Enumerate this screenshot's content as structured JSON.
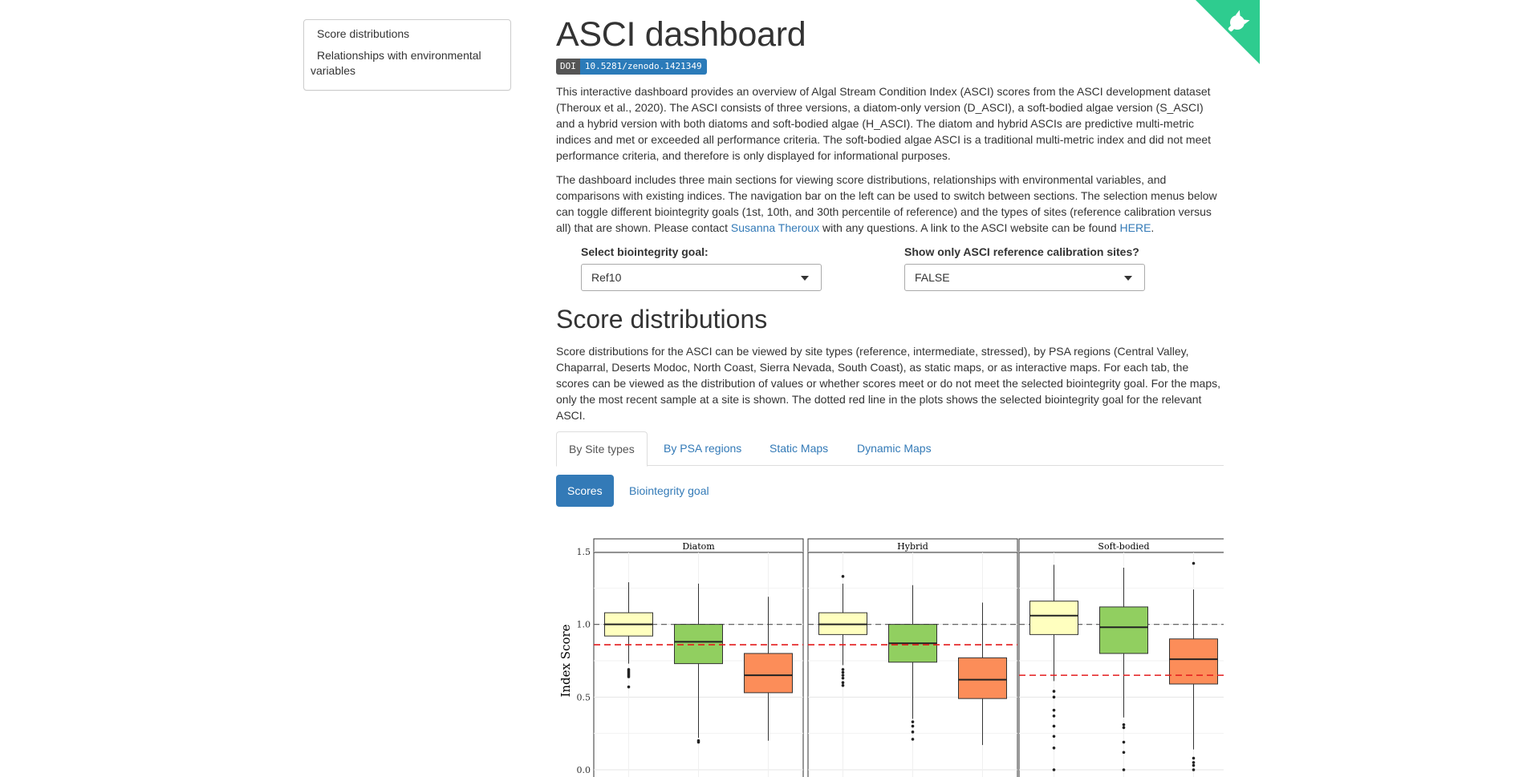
{
  "sidebar": {
    "items": [
      {
        "label": "Score distributions"
      },
      {
        "label": "Relationships with environmental variables"
      }
    ]
  },
  "header": {
    "title": "ASCI dashboard",
    "doi_label": "DOI",
    "doi_value": "10.5281/zenodo.1421349"
  },
  "intro": {
    "p1": "This interactive dashboard provides an overview of Algal Stream Condition Index (ASCI) scores from the ASCI development dataset (Theroux et al., 2020). The ASCI consists of three versions, a diatom-only version (D_ASCI), a soft-bodied algae version (S_ASCI) and a hybrid version with both diatoms and soft-bodied algae (H_ASCI). The diatom and hybrid ASCIs are predictive multi-metric indices and met or exceeded all performance criteria. The soft-bodied algae ASCI is a traditional multi-metric index and did not meet performance criteria, and therefore is only displayed for informational purposes.",
    "p2_text": "The dashboard includes three main sections for viewing score distributions, relationships with environmental variables, and comparisons with existing indices. The navigation bar on the left can be used to switch between sections. The selection menus below can toggle different biointegrity goals (1st, 10th, and 30th percentile of reference) and the types of sites (reference calibration versus all) that are shown. Please contact ",
    "p2_link1": "Susanna Theroux",
    "p2_mid": " with any questions. A link to the ASCI website can be found ",
    "p2_link2": "HERE",
    "p2_end": "."
  },
  "controls": {
    "goal_label": "Select biointegrity goal:",
    "goal_value": "Ref10",
    "ref_label": "Show only ASCI reference calibration sites?",
    "ref_value": "FALSE"
  },
  "section": {
    "title": "Score distributions",
    "text": "Score distributions for the ASCI can be viewed by site types (reference, intermediate, stressed), by PSA regions (Central Valley, Chaparral, Deserts Modoc, North Coast, Sierra Nevada, South Coast), as static maps, or as interactive maps. For each tab, the scores can be viewed as the distribution of values or whether scores meet or do not meet the selected biointegrity goal. For the maps, only the most recent sample at a site is shown. The dotted red line in the plots shows the selected biointegrity goal for the relevant ASCI."
  },
  "tabs": [
    {
      "label": "By Site types"
    },
    {
      "label": "By PSA regions"
    },
    {
      "label": "Static Maps"
    },
    {
      "label": "Dynamic Maps"
    }
  ],
  "subtabs": [
    {
      "label": "Scores"
    },
    {
      "label": "Biointegrity goal"
    }
  ],
  "colors": {
    "accent": "#337ab7",
    "reference": "#ffffbf",
    "intermediate": "#91cf60",
    "stressed": "#fc8d59",
    "goal_line": "#e41a1c",
    "corner": "#2ecc8f"
  },
  "icons": {
    "corner": "github-octocat-icon"
  },
  "chart_data": {
    "type": "box",
    "ylabel": "Index Score",
    "ylim": [
      0.0,
      1.5
    ],
    "yticks": [
      "0.0",
      "0.5",
      "1.0",
      "1.5"
    ],
    "reference_line": 1.0,
    "panels": [
      {
        "name": "Diatom",
        "goal": 0.86,
        "boxes": [
          {
            "min": 0.73,
            "q1": 0.92,
            "median": 1.0,
            "q3": 1.08,
            "max": 1.29,
            "outliers": [
              0.57,
              0.64,
              0.65,
              0.66,
              0.67,
              0.68,
              0.69
            ]
          },
          {
            "min": 0.22,
            "q1": 0.73,
            "median": 0.88,
            "q3": 1.0,
            "max": 1.28,
            "outliers": [
              0.19,
              0.2
            ]
          },
          {
            "min": 0.2,
            "q1": 0.53,
            "median": 0.65,
            "q3": 0.8,
            "max": 1.19,
            "outliers": []
          }
        ]
      },
      {
        "name": "Hybrid",
        "goal": 0.86,
        "boxes": [
          {
            "min": 0.72,
            "q1": 0.93,
            "median": 1.0,
            "q3": 1.08,
            "max": 1.28,
            "outliers": [
              0.58,
              0.6,
              0.63,
              0.65,
              0.67,
              0.69,
              1.33
            ]
          },
          {
            "min": 0.35,
            "q1": 0.74,
            "median": 0.87,
            "q3": 1.0,
            "max": 1.27,
            "outliers": [
              0.21,
              0.26,
              0.3,
              0.33
            ]
          },
          {
            "min": 0.17,
            "q1": 0.49,
            "median": 0.62,
            "q3": 0.77,
            "max": 1.15,
            "outliers": []
          }
        ]
      },
      {
        "name": "Soft-bodied",
        "goal": 0.65,
        "boxes": [
          {
            "min": 0.61,
            "q1": 0.93,
            "median": 1.06,
            "q3": 1.16,
            "max": 1.41,
            "outliers": [
              0.0,
              0.15,
              0.23,
              0.3,
              0.37,
              0.41,
              0.5,
              0.54
            ]
          },
          {
            "min": 0.36,
            "q1": 0.8,
            "median": 0.98,
            "q3": 1.12,
            "max": 1.39,
            "outliers": [
              0.0,
              0.12,
              0.19,
              0.29,
              0.31
            ]
          },
          {
            "min": 0.14,
            "q1": 0.59,
            "median": 0.76,
            "q3": 0.9,
            "max": 1.24,
            "outliers": [
              0.0,
              0.03,
              0.05,
              0.08,
              1.42
            ]
          }
        ]
      }
    ]
  }
}
